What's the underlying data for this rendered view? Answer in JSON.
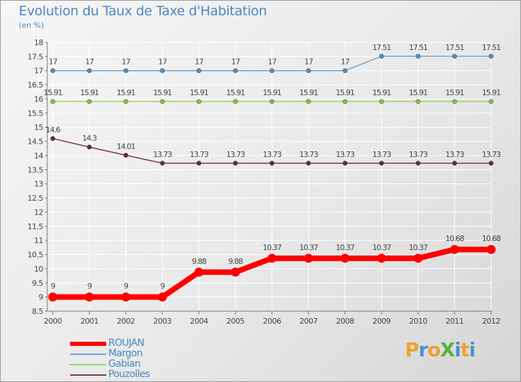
{
  "page": {
    "title": "Evolution du Taux de Taxe d'Habitation",
    "unit": "(en %)"
  },
  "brand": {
    "text": "ProXiti",
    "letters": [
      {
        "char": "P",
        "color": "#f0a030"
      },
      {
        "char": "r",
        "color": "#4a90d0"
      },
      {
        "char": "o",
        "color": "#f0a030"
      },
      {
        "char": "X",
        "color": "#5ab040"
      },
      {
        "char": "i",
        "color": "#4a90d0"
      },
      {
        "char": "t",
        "color": "#f0a030"
      },
      {
        "char": "i",
        "color": "#4a90d0"
      }
    ]
  },
  "chart_data": {
    "type": "line",
    "title": "Evolution du Taux de Taxe d'Habitation",
    "ylabel": "(en %)",
    "xlabel": "",
    "categories": [
      "2000",
      "2001",
      "2002",
      "2003",
      "2004",
      "2005",
      "2006",
      "2007",
      "2008",
      "2009",
      "2010",
      "2011",
      "2012"
    ],
    "ylim": [
      8.5,
      18
    ],
    "yticks": [
      8.5,
      9,
      9.5,
      10,
      10.5,
      11,
      11.5,
      12,
      12.5,
      13,
      13.5,
      14,
      14.5,
      15,
      15.5,
      16,
      16.5,
      17,
      17.5,
      18
    ],
    "ytick_labels": [
      "8.5",
      "9",
      "9.5",
      "10",
      "10.5",
      "11",
      "11.5",
      "12",
      "12.5",
      "13",
      "13.5",
      "14",
      "14.5",
      "15",
      "15.5",
      "16",
      "16.5",
      "17",
      "17.5",
      "18"
    ],
    "grid": true,
    "legend_position": "bottom-left",
    "series": [
      {
        "name": "ROUJAN",
        "color": "#ff0000",
        "emphasis": true,
        "values": [
          9,
          9,
          9,
          9,
          9.88,
          9.88,
          10.37,
          10.37,
          10.37,
          10.37,
          10.37,
          10.68,
          10.68
        ],
        "labels": [
          "9",
          "9",
          "9",
          "9",
          "9.88",
          "9.88",
          "10.37",
          "10.37",
          "10.37",
          "10.37",
          "10.37",
          "10.68",
          "10.68"
        ]
      },
      {
        "name": "Margon",
        "color": "#6fa3cf",
        "marker_color": "#4a90c8",
        "emphasis": false,
        "values": [
          17,
          17,
          17,
          17,
          17,
          17,
          17,
          17,
          17,
          17.51,
          17.51,
          17.51,
          17.51
        ],
        "labels": [
          "17",
          "17",
          "17",
          "17",
          "17",
          "17",
          "17",
          "17",
          "17",
          "17.51",
          "17.51",
          "17.51",
          "17.51"
        ]
      },
      {
        "name": "Gabian",
        "color": "#9ad56a",
        "marker_color": "#7cc24a",
        "emphasis": false,
        "values": [
          15.91,
          15.91,
          15.91,
          15.91,
          15.91,
          15.91,
          15.91,
          15.91,
          15.91,
          15.91,
          15.91,
          15.91,
          15.91
        ],
        "labels": [
          "15.91",
          "15.91",
          "15.91",
          "15.91",
          "15.91",
          "15.91",
          "15.91",
          "15.91",
          "15.91",
          "15.91",
          "15.91",
          "15.91",
          "15.91"
        ]
      },
      {
        "name": "Pouzolles",
        "color": "#7a3b3b",
        "marker_color": "#6a2a2a",
        "emphasis": false,
        "values": [
          14.6,
          14.3,
          14.01,
          13.73,
          13.73,
          13.73,
          13.73,
          13.73,
          13.73,
          13.73,
          13.73,
          13.73,
          13.73
        ],
        "labels": [
          "14.6",
          "14.3",
          "14.01",
          "13.73",
          "13.73",
          "13.73",
          "13.73",
          "13.73",
          "13.73",
          "13.73",
          "13.73",
          "13.73",
          "13.73"
        ]
      }
    ]
  }
}
